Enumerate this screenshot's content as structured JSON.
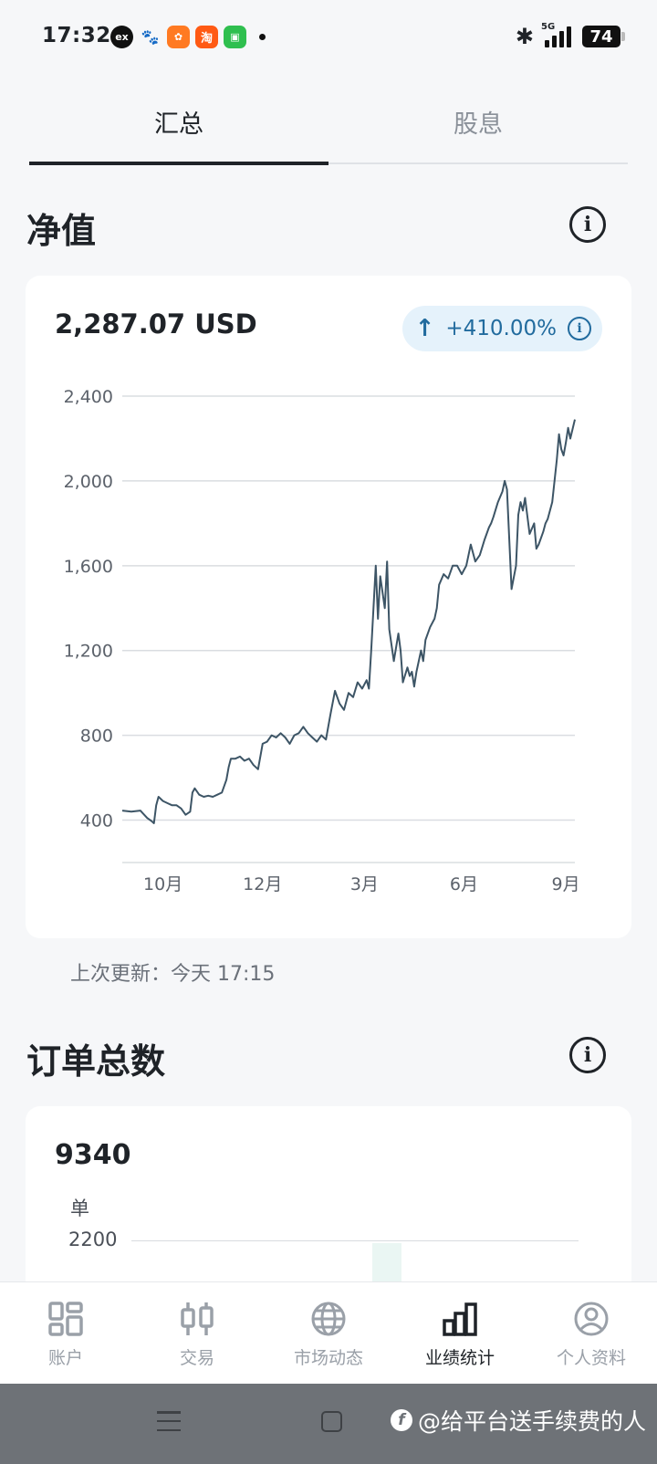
{
  "status_bar": {
    "time": "17:32",
    "apps": [
      {
        "name": "ex-app-icon",
        "glyph": "ex"
      },
      {
        "name": "baidu-icon",
        "glyph": "🐾"
      },
      {
        "name": "orange-app-icon",
        "glyph": "✿"
      },
      {
        "name": "taobao-icon",
        "glyph": "淘"
      },
      {
        "name": "message-app-icon",
        "glyph": "▣"
      }
    ],
    "network": "5G",
    "battery": "74"
  },
  "tabs": [
    {
      "label": "汇总",
      "active": true
    },
    {
      "label": "股息",
      "active": false
    }
  ],
  "net_value": {
    "title": "净值",
    "value": "2,287.07 USD",
    "change": "+410.00%",
    "last_updated": "上次更新：今天 17:15"
  },
  "chart_data": {
    "type": "line",
    "title": "",
    "xlabel": "",
    "ylabel": "",
    "ylim": [
      200,
      2400
    ],
    "y_ticks": [
      400,
      800,
      1200,
      1600,
      2000,
      2400
    ],
    "y_tick_labels": [
      "400",
      "800",
      "1,200",
      "1,600",
      "2,000",
      "2,400"
    ],
    "x_ticks": [
      {
        "label": "10月",
        "t": 0.09
      },
      {
        "label": "12月",
        "t": 0.31
      },
      {
        "label": "3月",
        "t": 0.535
      },
      {
        "label": "6月",
        "t": 0.755
      },
      {
        "label": "9月",
        "t": 0.98
      }
    ],
    "grid": true,
    "color": "#3d5566",
    "series": [
      {
        "x": [
          0,
          0.02,
          0.04,
          0.055,
          0.065,
          0.07,
          0.075,
          0.08,
          0.09,
          0.1,
          0.11,
          0.12,
          0.13,
          0.14,
          0.15,
          0.155,
          0.16,
          0.17,
          0.18,
          0.19,
          0.2,
          0.21,
          0.22,
          0.23,
          0.235,
          0.24,
          0.25,
          0.26,
          0.27,
          0.28,
          0.29,
          0.3,
          0.305,
          0.31,
          0.32,
          0.33,
          0.34,
          0.35,
          0.36,
          0.37,
          0.38,
          0.39,
          0.4,
          0.41,
          0.42,
          0.43,
          0.44,
          0.45,
          0.455,
          0.46,
          0.47,
          0.48,
          0.49,
          0.5,
          0.51,
          0.52,
          0.53,
          0.54,
          0.545,
          0.55,
          0.56,
          0.565,
          0.57,
          0.58,
          0.585,
          0.59,
          0.6,
          0.61,
          0.615,
          0.62,
          0.63,
          0.635,
          0.64,
          0.645,
          0.65,
          0.66,
          0.665,
          0.67,
          0.68,
          0.69,
          0.695,
          0.7,
          0.71,
          0.72,
          0.73,
          0.74,
          0.75,
          0.76,
          0.77,
          0.78,
          0.79,
          0.8,
          0.81,
          0.815,
          0.82,
          0.83,
          0.84,
          0.845,
          0.85,
          0.86,
          0.87,
          0.875,
          0.88,
          0.885,
          0.89,
          0.9,
          0.91,
          0.915,
          0.92,
          0.93,
          0.935,
          0.94,
          0.95,
          0.96,
          0.965,
          0.97,
          0.975,
          0.98,
          0.985,
          0.99,
          1.0
        ],
        "y": [
          445,
          440,
          445,
          410,
          395,
          385,
          470,
          510,
          490,
          480,
          470,
          470,
          455,
          425,
          440,
          530,
          550,
          520,
          510,
          515,
          510,
          520,
          530,
          590,
          650,
          690,
          690,
          700,
          680,
          690,
          660,
          640,
          700,
          760,
          770,
          800,
          790,
          810,
          790,
          760,
          800,
          810,
          840,
          810,
          790,
          770,
          800,
          780,
          840,
          900,
          1010,
          950,
          920,
          1000,
          980,
          1050,
          1020,
          1060,
          1020,
          1200,
          1600,
          1350,
          1550,
          1400,
          1620,
          1300,
          1150,
          1280,
          1200,
          1050,
          1120,
          1080,
          1100,
          1030,
          1100,
          1200,
          1150,
          1250,
          1310,
          1350,
          1400,
          1510,
          1560,
          1540,
          1600,
          1600,
          1560,
          1600,
          1700,
          1620,
          1650,
          1720,
          1780,
          1800,
          1830,
          1900,
          1950,
          2000,
          1960,
          1490,
          1600,
          1840,
          1900,
          1860,
          1920,
          1750,
          1800,
          1680,
          1700,
          1760,
          1800,
          1820,
          1900,
          2100,
          2220,
          2150,
          2120,
          2180,
          2250,
          2200,
          2290
        ]
      }
    ]
  },
  "orders": {
    "title": "订单总数",
    "value": "9340",
    "unit": "单",
    "tick_label": "2200"
  },
  "bottom_nav": [
    {
      "label": "账户",
      "icon": "dashboard-icon",
      "active": false
    },
    {
      "label": "交易",
      "icon": "candlestick-icon",
      "active": false
    },
    {
      "label": "市场动态",
      "icon": "globe-icon",
      "active": false
    },
    {
      "label": "业绩统计",
      "icon": "bar-chart-icon",
      "active": true
    },
    {
      "label": "个人资料",
      "icon": "profile-icon",
      "active": false
    }
  ],
  "watermark": "@给平台送手续费的人"
}
